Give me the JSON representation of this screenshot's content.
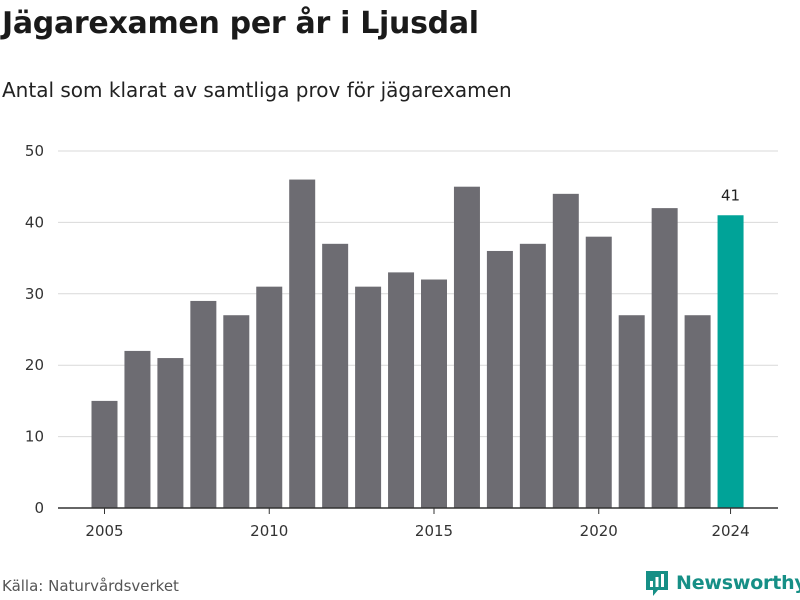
{
  "header": {
    "title": "Jägarexamen per år i Ljusdal",
    "subtitle": "Antal som klarat av samtliga prov för jägarexamen"
  },
  "footer": {
    "source": "Källa: Naturvårdsverket",
    "brand": "Newsworthy",
    "brand_icon": "bar-chart-logo-icon"
  },
  "colors": {
    "bar": "#6d6c72",
    "highlight": "#00a398",
    "grid": "#d9d9d9",
    "axis": "#333333",
    "brand": "#168f86"
  },
  "chart_data": {
    "type": "bar",
    "title": "Jägarexamen per år i Ljusdal",
    "subtitle": "Antal som klarat av samtliga prov för jägarexamen",
    "xlabel": "",
    "ylabel": "",
    "x": [
      2005,
      2006,
      2007,
      2008,
      2009,
      2010,
      2011,
      2012,
      2013,
      2014,
      2015,
      2016,
      2017,
      2018,
      2019,
      2020,
      2021,
      2022,
      2023,
      2024
    ],
    "values": [
      15,
      22,
      21,
      29,
      27,
      31,
      46,
      37,
      31,
      33,
      32,
      45,
      36,
      37,
      44,
      38,
      27,
      42,
      27,
      41
    ],
    "highlight_x": 2024,
    "data_labels": [
      {
        "x": 2024,
        "text": "41"
      }
    ],
    "x_ticks": [
      "2005",
      "2010",
      "2015",
      "2020",
      "2024"
    ],
    "y_ticks": [
      "0",
      "10",
      "20",
      "30",
      "40",
      "50"
    ],
    "ylim": [
      0,
      50
    ],
    "grid": "horizontal",
    "legend": "none"
  }
}
